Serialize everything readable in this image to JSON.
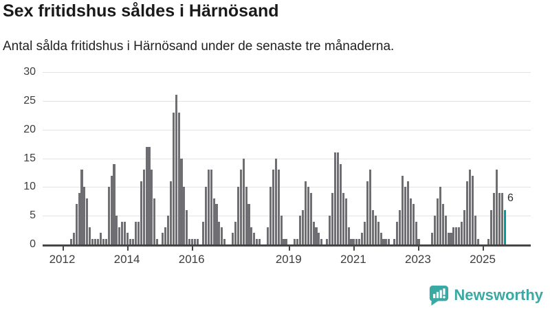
{
  "header": {
    "title": "Sex fritidshus såldes i Härnösand",
    "subtitle": "Antal sålda fritidshus i Härnösand under de senaste tre månaderna."
  },
  "chart_data": {
    "type": "bar",
    "title": "Sex fritidshus såldes i Härnösand",
    "subtitle": "Antal sålda fritidshus i Härnösand under de senaste tre månaderna.",
    "xlabel": "",
    "ylabel": "",
    "ylim": [
      0,
      30
    ],
    "grid": true,
    "legend": "none",
    "start_month": "2012-01",
    "period": "monthly, rolling 3-month sums",
    "values": [
      0,
      0,
      0,
      1,
      2,
      7,
      9,
      13,
      10,
      8,
      3,
      1,
      1,
      1,
      2,
      1,
      1,
      10,
      12,
      14,
      5,
      3,
      4,
      4,
      2,
      1,
      1,
      4,
      4,
      11,
      13,
      17,
      17,
      13,
      8,
      1,
      0,
      2,
      3,
      5,
      11,
      23,
      26,
      23,
      15,
      10,
      6,
      1,
      1,
      1,
      1,
      0,
      4,
      10,
      13,
      13,
      8,
      7,
      4,
      3,
      1,
      0,
      0,
      2,
      4,
      10,
      13,
      15,
      10,
      7,
      3,
      2,
      1,
      1,
      0,
      0,
      3,
      10,
      13,
      15,
      13,
      5,
      1,
      1,
      0,
      0,
      1,
      1,
      5,
      6,
      11,
      10,
      9,
      4,
      3,
      2,
      1,
      0,
      1,
      5,
      9,
      16,
      16,
      14,
      9,
      8,
      3,
      1,
      1,
      1,
      1,
      2,
      4,
      11,
      13,
      6,
      5,
      4,
      2,
      1,
      1,
      1,
      0,
      1,
      4,
      6,
      12,
      10,
      11,
      8,
      7,
      4,
      1,
      0,
      0,
      0,
      0,
      2,
      5,
      8,
      10,
      7,
      5,
      2,
      2,
      3,
      3,
      3,
      4,
      6,
      11,
      13,
      12,
      5,
      1,
      0,
      0,
      0,
      1,
      6,
      9,
      13,
      9,
      9,
      6
    ],
    "yticks": [
      0,
      5,
      10,
      15,
      20,
      25,
      30
    ],
    "xticks": [
      {
        "label": "2012",
        "month_index": 0
      },
      {
        "label": "2014",
        "month_index": 24
      },
      {
        "label": "2016",
        "month_index": 48
      },
      {
        "label": "2019",
        "month_index": 84
      },
      {
        "label": "2021",
        "month_index": 108
      },
      {
        "label": "2023",
        "month_index": 132
      },
      {
        "label": "2025",
        "month_index": 156
      }
    ],
    "bar_color": "#6e6e73",
    "highlight": {
      "index": 164,
      "value": 6,
      "label": "6",
      "color": "#009a9a"
    }
  },
  "footer": {
    "brand": "Newsworthy",
    "logo_color": "#3aa8a3",
    "logo_icon": "bar-chart-speech-bubble"
  }
}
